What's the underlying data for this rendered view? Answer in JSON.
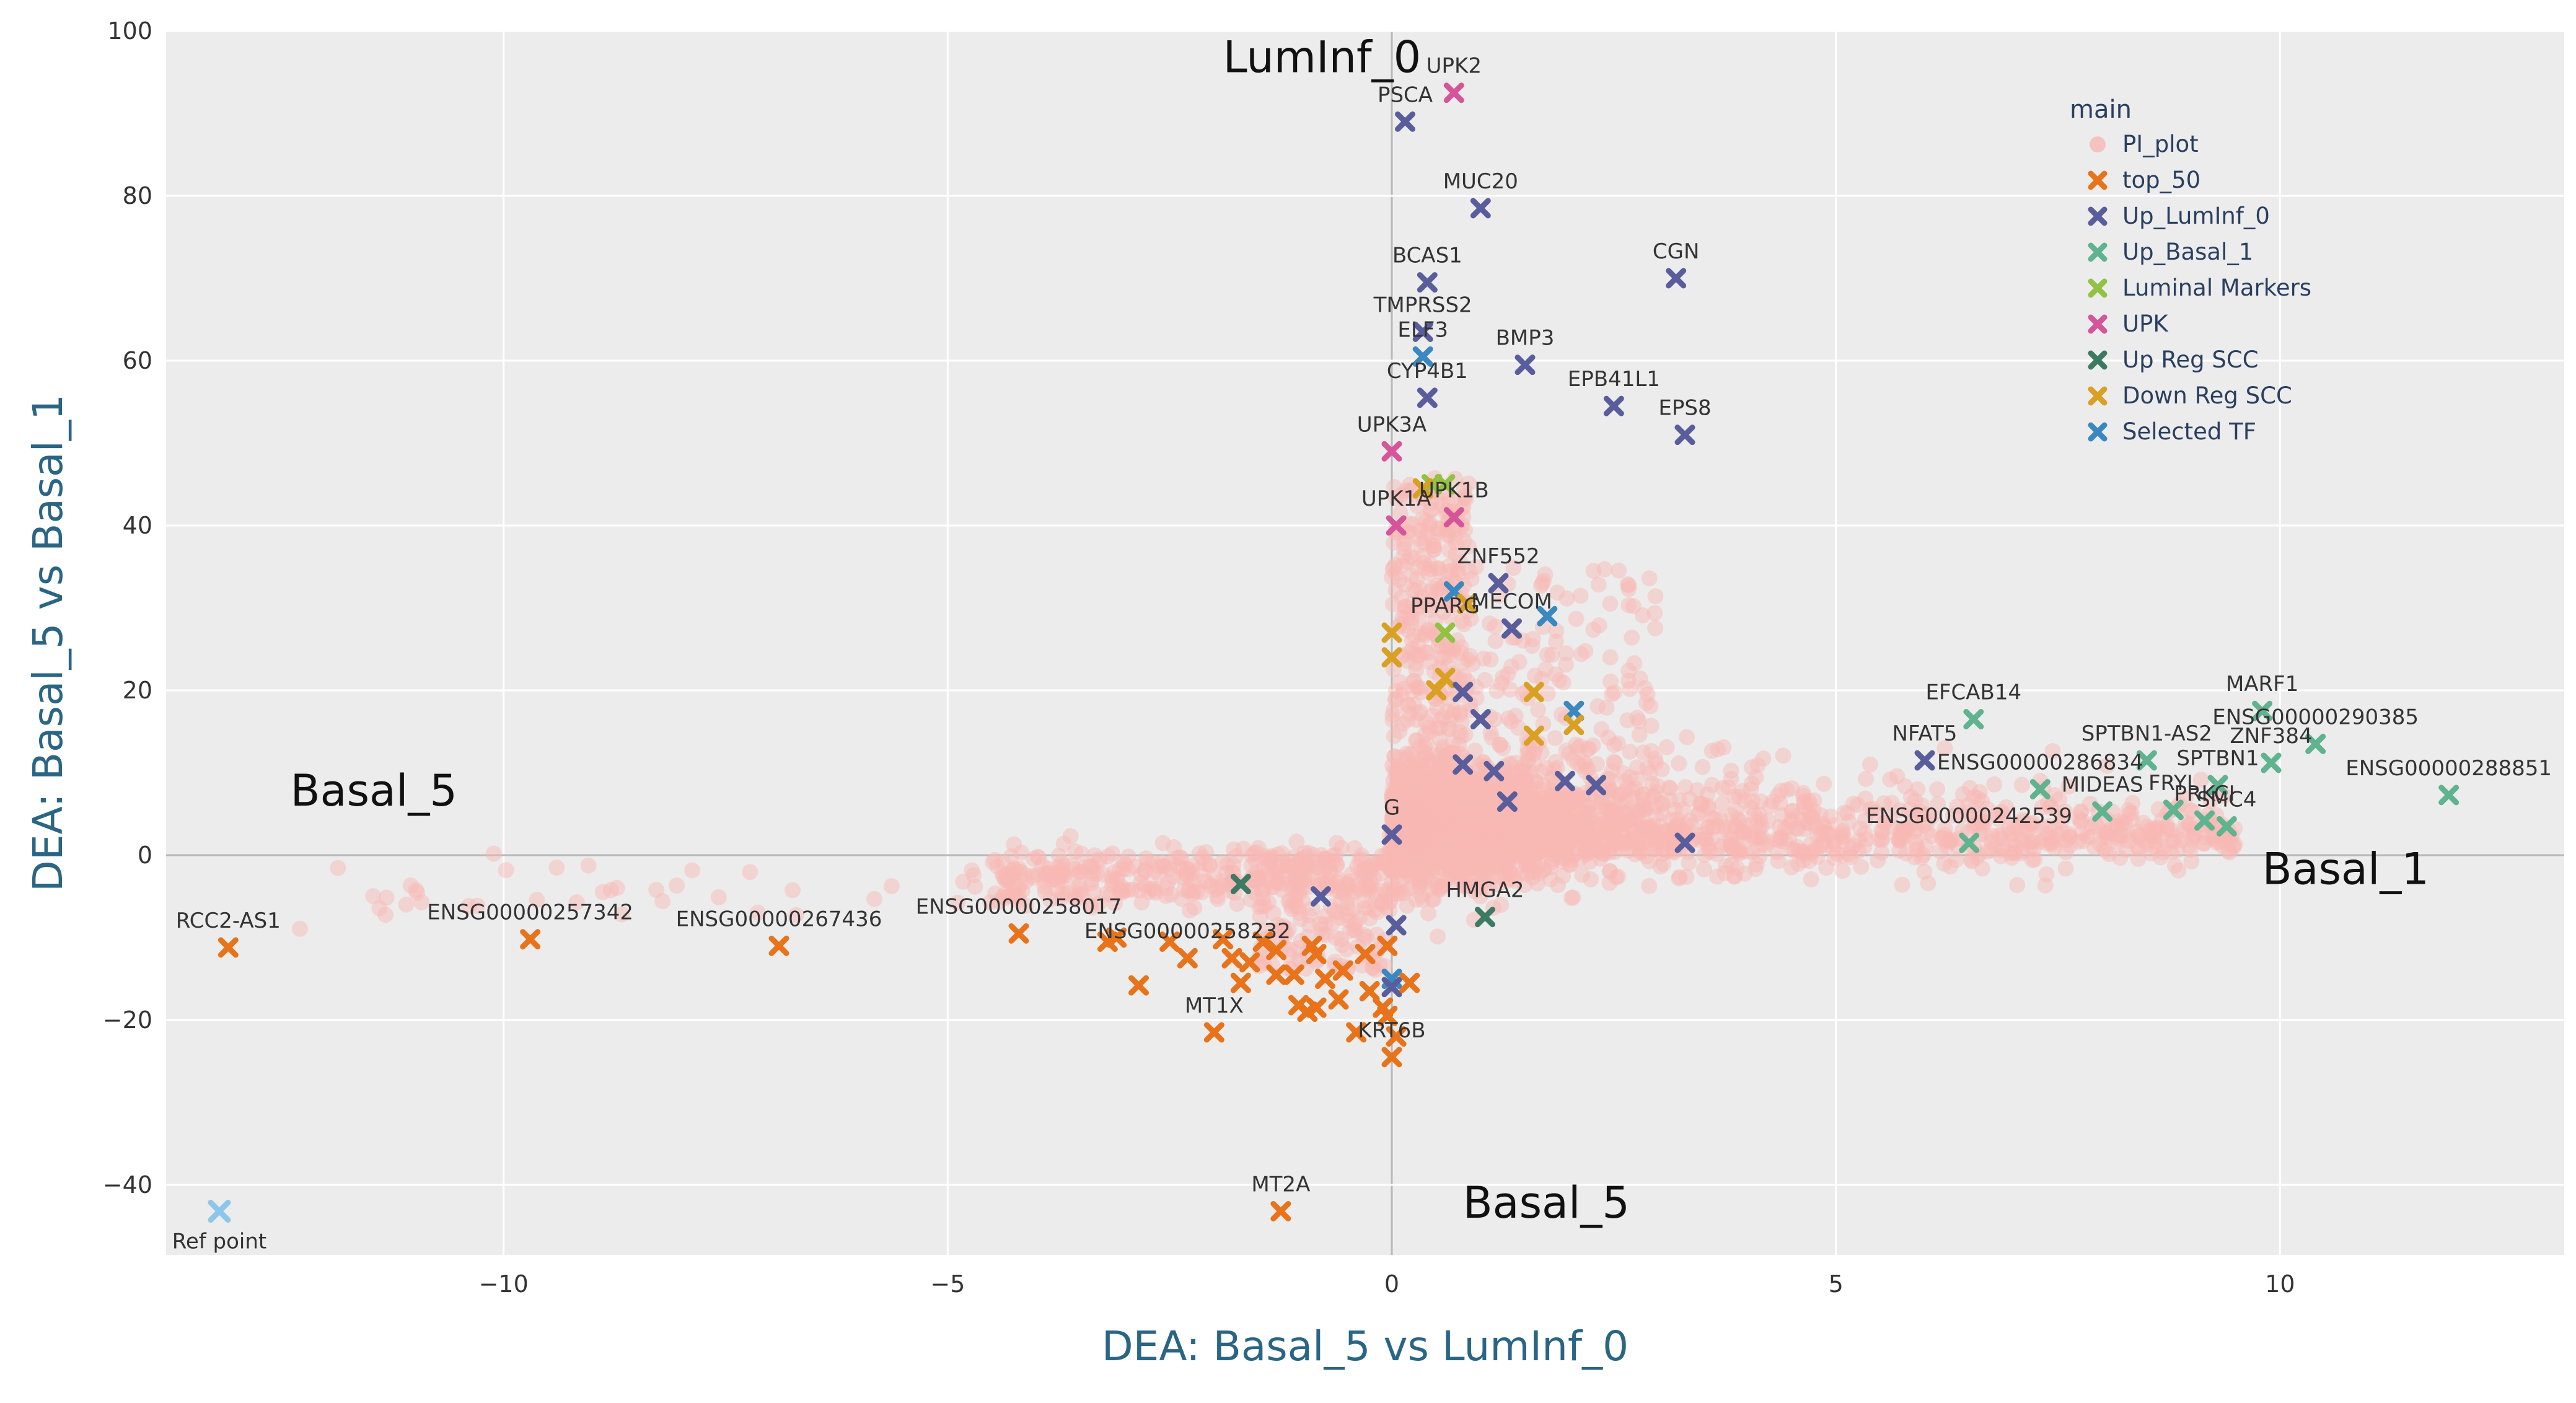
{
  "chart_data": {
    "type": "scatter",
    "xlabel": "DEA: Basal_5 vs LumInf_0",
    "ylabel": "DEA: Basal_5 vs Basal_1",
    "xlim": [
      -13.8,
      13.2
    ],
    "ylim": [
      -48.5,
      100
    ],
    "xticks": [
      -10,
      -5,
      0,
      5,
      10
    ],
    "yticks": [
      -40,
      -20,
      0,
      20,
      40,
      60,
      80,
      100
    ],
    "tick_labels_x": [
      "−10",
      "−5",
      "0",
      "5",
      "10"
    ],
    "tick_labels_y": [
      "−40",
      "−20",
      "0",
      "20",
      "40",
      "60",
      "80",
      "100"
    ],
    "grid": true,
    "legend": {
      "title": "main",
      "placement": "top-right",
      "entries": [
        {
          "name": "PI_plot",
          "color": "#f8b9b4",
          "marker": "circle"
        },
        {
          "name": "top_50",
          "color": "#e8731a",
          "marker": "x"
        },
        {
          "name": "Up_LumInf_0",
          "color": "#5a5d9c",
          "marker": "x"
        },
        {
          "name": "Up_Basal_1",
          "color": "#5fb38f",
          "marker": "x"
        },
        {
          "name": "Luminal Markers",
          "color": "#93c143",
          "marker": "x"
        },
        {
          "name": "UPK",
          "color": "#d5549a",
          "marker": "x"
        },
        {
          "name": "Up Reg SCC",
          "color": "#3d7a64",
          "marker": "x"
        },
        {
          "name": "Down Reg SCC",
          "color": "#d9a024",
          "marker": "x"
        },
        {
          "name": "Selected TF",
          "color": "#3a88c0",
          "marker": "x"
        }
      ]
    },
    "region_labels": [
      {
        "text": "LumInf_0",
        "x": -1.9,
        "y": 95
      },
      {
        "text": "Basal_5",
        "x": -12.4,
        "y": 6
      },
      {
        "text": "Basal_1",
        "x": 9.8,
        "y": -3.5
      },
      {
        "text": "Basal_5",
        "x": 0.8,
        "y": -44
      }
    ],
    "ref_point": {
      "label": "Ref point",
      "x": -13.2,
      "y": -43.2,
      "color": "#8cc7ea"
    },
    "points": [
      {
        "label": "UPK2",
        "x": 0.7,
        "y": 92.5,
        "series": "UPK"
      },
      {
        "label": "PSCA",
        "x": 0.15,
        "y": 89,
        "series": "Up_LumInf_0"
      },
      {
        "label": "MUC20",
        "x": 1.0,
        "y": 78.5,
        "series": "Up_LumInf_0"
      },
      {
        "label": "BCAS1",
        "x": 0.4,
        "y": 69.5,
        "series": "Up_LumInf_0"
      },
      {
        "label": "CGN",
        "x": 3.2,
        "y": 70,
        "series": "Up_LumInf_0"
      },
      {
        "label": "TMPRSS2",
        "x": 0.35,
        "y": 63.5,
        "series": "Up_LumInf_0"
      },
      {
        "label": "ELF3",
        "x": 0.35,
        "y": 60.5,
        "series": "Selected TF"
      },
      {
        "label": "BMP3",
        "x": 1.5,
        "y": 59.5,
        "series": "Up_LumInf_0"
      },
      {
        "label": "CYP4B1",
        "x": 0.4,
        "y": 55.5,
        "series": "Up_LumInf_0"
      },
      {
        "label": "EPB41L1",
        "x": 2.5,
        "y": 54.5,
        "series": "Up_LumInf_0"
      },
      {
        "label": "EPS8",
        "x": 3.3,
        "y": 51,
        "series": "Up_LumInf_0"
      },
      {
        "label": "UPK3A",
        "x": 0.0,
        "y": 49,
        "series": "UPK"
      },
      {
        "label": "UPK1B",
        "x": 0.7,
        "y": 41,
        "series": "UPK"
      },
      {
        "label": "UPK1A",
        "x": 0.05,
        "y": 40,
        "series": "UPK"
      },
      {
        "label": "ZNF552",
        "x": 1.2,
        "y": 33,
        "series": "Up_LumInf_0"
      },
      {
        "label": "PPARG",
        "x": 0.6,
        "y": 27,
        "series": "Luminal Markers"
      },
      {
        "label": "MECOM",
        "x": 1.35,
        "y": 27.5,
        "series": "Up_LumInf_0"
      },
      {
        "label": "EFCAB14",
        "x": 6.55,
        "y": 16.5,
        "series": "Up_Basal_1"
      },
      {
        "label": "NFAT5",
        "x": 6.0,
        "y": 11.5,
        "series": "Up_LumInf_0"
      },
      {
        "label": "MARF1",
        "x": 9.8,
        "y": 17.5,
        "series": "Up_Basal_1"
      },
      {
        "label": "ENSG00000290385",
        "x": 10.4,
        "y": 13.5,
        "series": "Up_Basal_1"
      },
      {
        "label": "SPTBN1-AS2",
        "x": 8.5,
        "y": 11.5,
        "series": "Up_Basal_1"
      },
      {
        "label": "ZNF384",
        "x": 9.9,
        "y": 11.2,
        "series": "Up_Basal_1"
      },
      {
        "label": "ENSG00000286834",
        "x": 7.3,
        "y": 8,
        "series": "Up_Basal_1"
      },
      {
        "label": "SPTBN1",
        "x": 9.3,
        "y": 8.5,
        "series": "Up_Basal_1"
      },
      {
        "label": "MIDEAS",
        "x": 8.0,
        "y": 5.3,
        "series": "Up_Basal_1"
      },
      {
        "label": "FRYL",
        "x": 8.8,
        "y": 5.5,
        "series": "Up_Basal_1"
      },
      {
        "label": "PRKCI",
        "x": 9.15,
        "y": 4.2,
        "series": "Up_Basal_1"
      },
      {
        "label": "SMC4",
        "x": 9.4,
        "y": 3.5,
        "series": "Up_Basal_1"
      },
      {
        "label": "ENSG00000288851",
        "x": 11.9,
        "y": 7.3,
        "series": "Up_Basal_1"
      },
      {
        "label": "ENSG00000242539",
        "x": 6.5,
        "y": 1.5,
        "series": "Up_Basal_1"
      },
      {
        "label": "G",
        "x": 0.0,
        "y": 2.5,
        "series": "Up_LumInf_0"
      },
      {
        "label": "HMGA2",
        "x": 1.05,
        "y": -7.5,
        "series": "Up Reg SCC"
      },
      {
        "label": "RCC2-AS1",
        "x": -13.1,
        "y": -11.2,
        "series": "top_50"
      },
      {
        "label": "ENSG00000257342",
        "x": -9.7,
        "y": -10.2,
        "series": "top_50"
      },
      {
        "label": "ENSG00000267436",
        "x": -6.9,
        "y": -11,
        "series": "top_50"
      },
      {
        "label": "ENSG00000258017",
        "x": -4.2,
        "y": -9.5,
        "series": "top_50"
      },
      {
        "label": "ENSG00000258232",
        "x": -2.3,
        "y": -12.5,
        "series": "top_50"
      },
      {
        "label": "MT1X",
        "x": -2.0,
        "y": -21.5,
        "series": "top_50"
      },
      {
        "label": "KRT6B",
        "x": 0.0,
        "y": -24.5,
        "series": "top_50"
      },
      {
        "label": "MT2A",
        "x": -1.25,
        "y": -43.2,
        "series": "top_50"
      },
      {
        "label": "",
        "x": 0.45,
        "y": 45,
        "series": "Luminal Markers"
      },
      {
        "label": "",
        "x": 0.6,
        "y": 45,
        "series": "Luminal Markers"
      },
      {
        "label": "",
        "x": 0.35,
        "y": 44.5,
        "series": "Down Reg SCC"
      },
      {
        "label": "",
        "x": 0.7,
        "y": 32,
        "series": "Selected TF"
      },
      {
        "label": "",
        "x": 1.75,
        "y": 29,
        "series": "Selected TF"
      },
      {
        "label": "",
        "x": 0.85,
        "y": 30.5,
        "series": "Down Reg SCC"
      },
      {
        "label": "",
        "x": 0.6,
        "y": 21.5,
        "series": "Down Reg SCC"
      },
      {
        "label": "",
        "x": 0.8,
        "y": 19.8,
        "series": "Up_LumInf_0"
      },
      {
        "label": "",
        "x": 1.6,
        "y": 19.8,
        "series": "Down Reg SCC"
      },
      {
        "label": "",
        "x": 2.05,
        "y": 17.5,
        "series": "Selected TF"
      },
      {
        "label": "",
        "x": 2.05,
        "y": 15.8,
        "series": "Down Reg SCC"
      },
      {
        "label": "",
        "x": 1.6,
        "y": 14.5,
        "series": "Down Reg SCC"
      },
      {
        "label": "",
        "x": 1.0,
        "y": 16.5,
        "series": "Up_LumInf_0"
      },
      {
        "label": "",
        "x": 0.5,
        "y": 20,
        "series": "Down Reg SCC"
      },
      {
        "label": "",
        "x": 0.8,
        "y": 11,
        "series": "Up_LumInf_0"
      },
      {
        "label": "",
        "x": 1.15,
        "y": 10.2,
        "series": "Up_LumInf_0"
      },
      {
        "label": "",
        "x": 1.95,
        "y": 9,
        "series": "Up_LumInf_0"
      },
      {
        "label": "",
        "x": 2.3,
        "y": 8.5,
        "series": "Up_LumInf_0"
      },
      {
        "label": "",
        "x": 3.3,
        "y": 1.5,
        "series": "Up_LumInf_0"
      },
      {
        "label": "",
        "x": 1.3,
        "y": 6.5,
        "series": "Up_LumInf_0"
      },
      {
        "label": "",
        "x": 0.0,
        "y": 27,
        "series": "Down Reg SCC"
      },
      {
        "label": "",
        "x": 0.0,
        "y": 24,
        "series": "Down Reg SCC"
      },
      {
        "label": "",
        "x": -1.7,
        "y": -3.5,
        "series": "Up Reg SCC"
      },
      {
        "label": "",
        "x": -0.8,
        "y": -5,
        "series": "Up_LumInf_0"
      },
      {
        "label": "",
        "x": 0.05,
        "y": -8.5,
        "series": "Up_LumInf_0"
      },
      {
        "label": "",
        "x": 0.0,
        "y": -15,
        "series": "Selected TF"
      },
      {
        "label": "",
        "x": 0.0,
        "y": -16,
        "series": "Up_LumInf_0"
      },
      {
        "label": "",
        "x": -0.9,
        "y": -11,
        "series": "top_50"
      },
      {
        "label": "",
        "x": -1.3,
        "y": -11.5,
        "series": "top_50"
      },
      {
        "label": "",
        "x": -0.3,
        "y": -12,
        "series": "top_50"
      },
      {
        "label": "",
        "x": -0.05,
        "y": -11,
        "series": "top_50"
      },
      {
        "label": "",
        "x": -1.8,
        "y": -12.5,
        "series": "top_50"
      },
      {
        "label": "",
        "x": -1.6,
        "y": -13,
        "series": "top_50"
      },
      {
        "label": "",
        "x": -1.9,
        "y": -10.2,
        "series": "top_50"
      },
      {
        "label": "",
        "x": -1.45,
        "y": -10.5,
        "series": "top_50"
      },
      {
        "label": "",
        "x": -0.85,
        "y": -12,
        "series": "top_50"
      },
      {
        "label": "",
        "x": -0.55,
        "y": -14,
        "series": "top_50"
      },
      {
        "label": "",
        "x": -1.3,
        "y": -14.5,
        "series": "top_50"
      },
      {
        "label": "",
        "x": -1.1,
        "y": -14.5,
        "series": "top_50"
      },
      {
        "label": "",
        "x": -1.7,
        "y": -15.5,
        "series": "top_50"
      },
      {
        "label": "",
        "x": -1.05,
        "y": -18.2,
        "series": "top_50"
      },
      {
        "label": "",
        "x": -0.85,
        "y": -18.5,
        "series": "top_50"
      },
      {
        "label": "",
        "x": -0.6,
        "y": -17.5,
        "series": "top_50"
      },
      {
        "label": "",
        "x": -0.25,
        "y": -16.5,
        "series": "top_50"
      },
      {
        "label": "",
        "x": -0.1,
        "y": -18.5,
        "series": "top_50"
      },
      {
        "label": "",
        "x": -0.05,
        "y": -19.5,
        "series": "top_50"
      },
      {
        "label": "",
        "x": 0.2,
        "y": -15.5,
        "series": "top_50"
      },
      {
        "label": "",
        "x": -2.85,
        "y": -15.8,
        "series": "top_50"
      },
      {
        "label": "",
        "x": -3.1,
        "y": -10,
        "series": "top_50"
      },
      {
        "label": "",
        "x": -3.2,
        "y": -10.5,
        "series": "top_50"
      },
      {
        "label": "",
        "x": -2.5,
        "y": -10.5,
        "series": "top_50"
      },
      {
        "label": "",
        "x": -0.95,
        "y": -19,
        "series": "top_50"
      },
      {
        "label": "",
        "x": -0.75,
        "y": -15,
        "series": "top_50"
      },
      {
        "label": "",
        "x": -0.4,
        "y": -21.5,
        "series": "top_50"
      },
      {
        "label": "",
        "x": 0.05,
        "y": -22,
        "series": "top_50"
      }
    ]
  }
}
